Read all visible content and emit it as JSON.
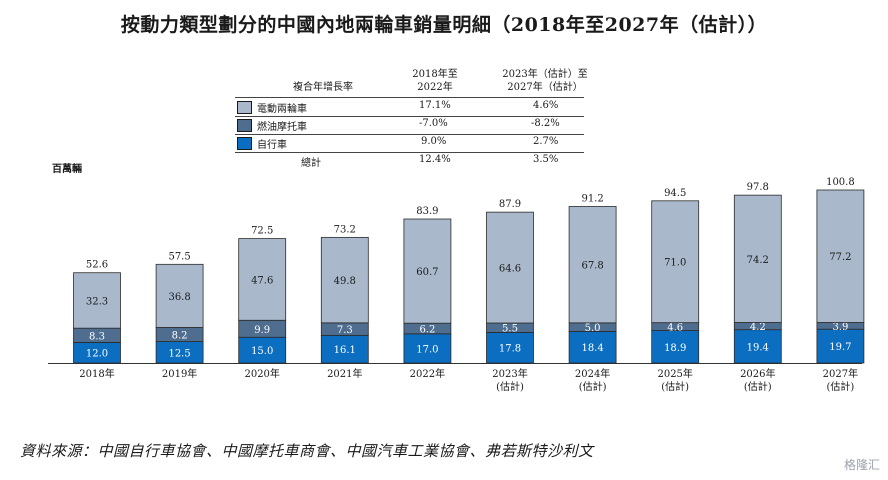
{
  "title": "按動力類型劃分的中國內地兩輪車銷量明細（2018年至2027年（估計））",
  "unit_label": "百萬輛",
  "source": "資料來源：中國自行車協會、中國摩托車商會、中國汽車工業協會、弗若斯特沙利文",
  "watermark": "格隆汇",
  "cagr_table": {
    "header": [
      "複合年增長率",
      "2018年至\n2022年",
      "2023年（估計）至\n2027年（估計）"
    ],
    "rows": [
      {
        "label": "電動兩輪車",
        "v1": "17.1%",
        "v2": "4.6%",
        "color": "#a9b9cb"
      },
      {
        "label": "燃油摩托車",
        "v1": "-7.0%",
        "v2": "-8.2%",
        "color": "#4f6d8e"
      },
      {
        "label": "自行車",
        "v1": "9.0%",
        "v2": "2.7%",
        "color": "#0b6ec0"
      },
      {
        "label": "總計",
        "v1": "12.4%",
        "v2": "3.5%",
        "color": ""
      }
    ]
  },
  "chart_data": {
    "type": "bar",
    "stacked": true,
    "categories": [
      "2018年",
      "2019年",
      "2020年",
      "2021年",
      "2022年",
      "2023年\n(估計)",
      "2024年\n(估計)",
      "2025年\n(估計)",
      "2026年\n(估計)",
      "2027年\n(估計)"
    ],
    "series": [
      {
        "name": "自行車",
        "values": [
          12.0,
          12.5,
          15.0,
          16.1,
          17.0,
          17.8,
          18.4,
          18.9,
          19.4,
          19.7
        ],
        "color": "#0b6ec0",
        "label_color": "#ffffff"
      },
      {
        "name": "燃油摩托車",
        "values": [
          8.3,
          8.2,
          9.9,
          7.3,
          6.2,
          5.5,
          5.0,
          4.6,
          4.2,
          3.9
        ],
        "color": "#4f6d8e",
        "label_color": "#ffffff"
      },
      {
        "name": "電動兩輪車",
        "values": [
          32.3,
          36.8,
          47.6,
          49.8,
          60.7,
          64.6,
          67.8,
          71.0,
          74.2,
          77.2
        ],
        "color": "#a9b9cb",
        "label_color": "#1a1a1a"
      }
    ],
    "totals": [
      52.6,
      57.5,
      72.5,
      73.2,
      83.9,
      87.9,
      91.2,
      94.5,
      97.8,
      100.8
    ],
    "ylim": [
      0,
      100.8
    ],
    "grid": false,
    "legend": "top"
  }
}
